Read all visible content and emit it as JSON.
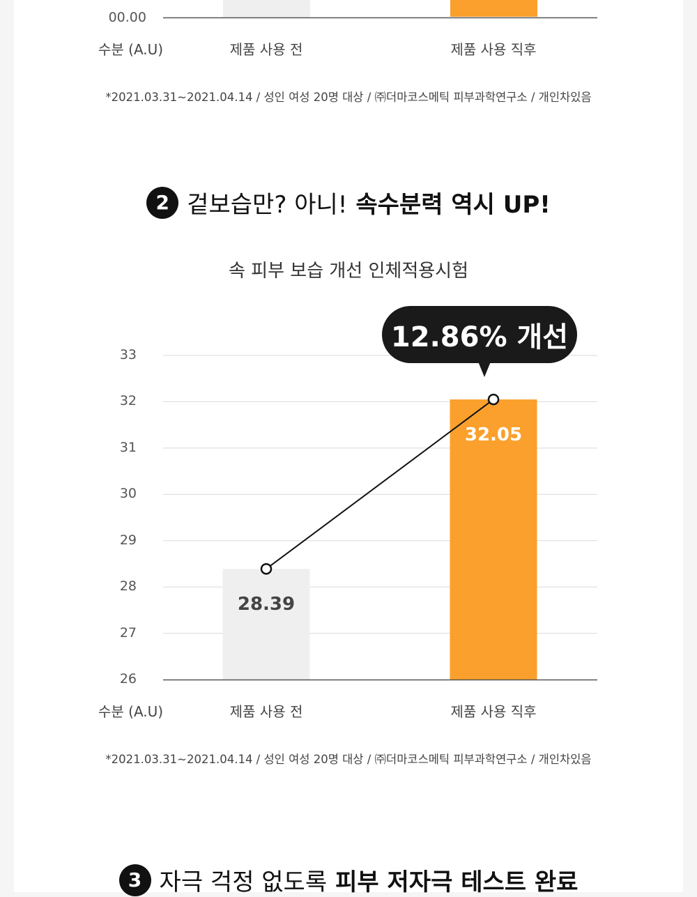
{
  "top_chart": {
    "y_tick_label": "00.00",
    "unit_label": "수분 (A.U)",
    "categories": [
      "제품 사용 전",
      "제품 사용 직후"
    ],
    "footnote": "*2021.03.31~2021.04.14 / 성인 여성 20명 대상 / ㈜더마코스메틱 피부과학연구소 / 개인차있음"
  },
  "section2": {
    "number": "2",
    "heading_normal": "겉보습만? 아니!",
    "heading_bold": "속수분력 역시 UP!",
    "subtitle": "속 피부 보습 개선 인체적용시험",
    "callout": "12.86% 개선",
    "unit_label": "수분 (A.U)",
    "footnote": "*2021.03.31~2021.04.14 / 성인 여성 20명 대상 / ㈜더마코스메틱 피부과학연구소 / 개인차있음"
  },
  "chart_data": {
    "type": "bar",
    "categories": [
      "제품 사용 전",
      "제품 사용 직후"
    ],
    "values": [
      28.39,
      32.05
    ],
    "value_labels": [
      "28.39",
      "32.05"
    ],
    "ylim": [
      26,
      33
    ],
    "yticks": [
      26,
      27,
      28,
      29,
      30,
      31,
      32,
      33
    ],
    "ylabel": "수분 (A.U)",
    "bar_colors": [
      "#efefef",
      "#fba02c"
    ],
    "grid": true,
    "annotation": "12.86% 개선"
  },
  "section3": {
    "number": "3",
    "heading_normal": "자극 걱정 없도록",
    "heading_bold": "피부 저자극 테스트 완료"
  }
}
